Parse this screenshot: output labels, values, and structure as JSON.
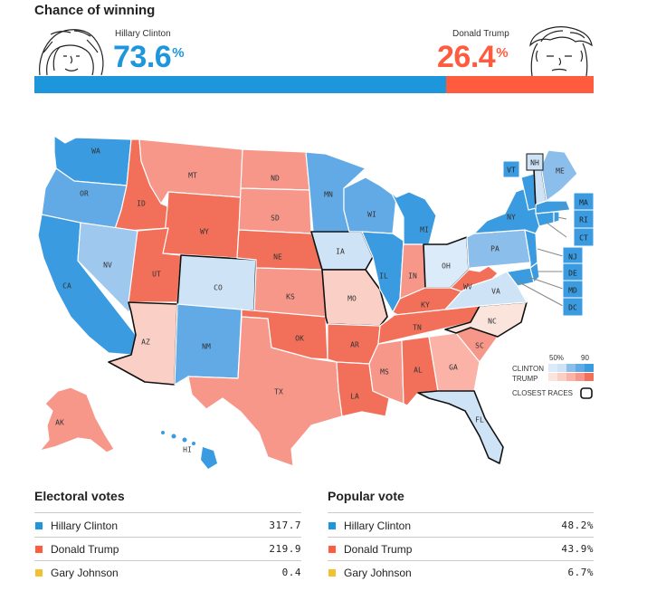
{
  "header": {
    "title": "Chance of winning",
    "clinton": {
      "name": "Hillary Clinton",
      "pct_number": "73.6",
      "pct_sign": "%",
      "value": 73.6
    },
    "trump": {
      "name": "Donald Trump",
      "pct_number": "26.4",
      "pct_sign": "%",
      "value": 26.4
    }
  },
  "colors": {
    "clinton": "#1e96dc",
    "trump": "#ff5b3f",
    "johnson": "#f2c12e"
  },
  "map": {
    "states": {
      "WA": "WA",
      "OR": "OR",
      "CA": "CA",
      "ID": "ID",
      "NV": "NV",
      "MT": "MT",
      "WY": "WY",
      "UT": "UT",
      "AZ": "AZ",
      "CO": "CO",
      "NM": "NM",
      "ND": "ND",
      "SD": "SD",
      "NE": "NE",
      "KS": "KS",
      "OK": "OK",
      "TX": "TX",
      "MN": "MN",
      "IA": "IA",
      "MO": "MO",
      "AR": "AR",
      "LA": "LA",
      "WI": "WI",
      "IL": "IL",
      "MI": "MI",
      "IN": "IN",
      "OH": "OH",
      "KY": "KY",
      "TN": "TN",
      "MS": "MS",
      "AL": "AL",
      "GA": "GA",
      "FL": "FL",
      "SC": "SC",
      "NC": "NC",
      "VA": "VA",
      "WV": "WV",
      "PA": "PA",
      "NY": "NY",
      "ME": "ME",
      "VT": "VT",
      "NH": "NH",
      "AK": "AK",
      "HI": "HI"
    },
    "boxes": {
      "MA": "MA",
      "RI": "RI",
      "CT": "CT",
      "NJ": "NJ",
      "DE": "DE",
      "MD": "MD",
      "DC": "DC"
    },
    "legend": {
      "scale_low": "50%",
      "scale_high": "90",
      "clinton": "CLINTON",
      "trump": "TRUMP",
      "closest": "CLOSEST RACES"
    }
  },
  "electoral": {
    "title": "Electoral votes",
    "rows": [
      {
        "name": "Hillary Clinton",
        "value": "317.7"
      },
      {
        "name": "Donald Trump",
        "value": "219.9"
      },
      {
        "name": "Gary Johnson",
        "value": "0.4"
      }
    ]
  },
  "popular": {
    "title": "Popular vote",
    "rows": [
      {
        "name": "Hillary Clinton",
        "value": "48.2%"
      },
      {
        "name": "Donald Trump",
        "value": "43.9%"
      },
      {
        "name": "Gary Johnson",
        "value": "6.7%"
      }
    ]
  }
}
